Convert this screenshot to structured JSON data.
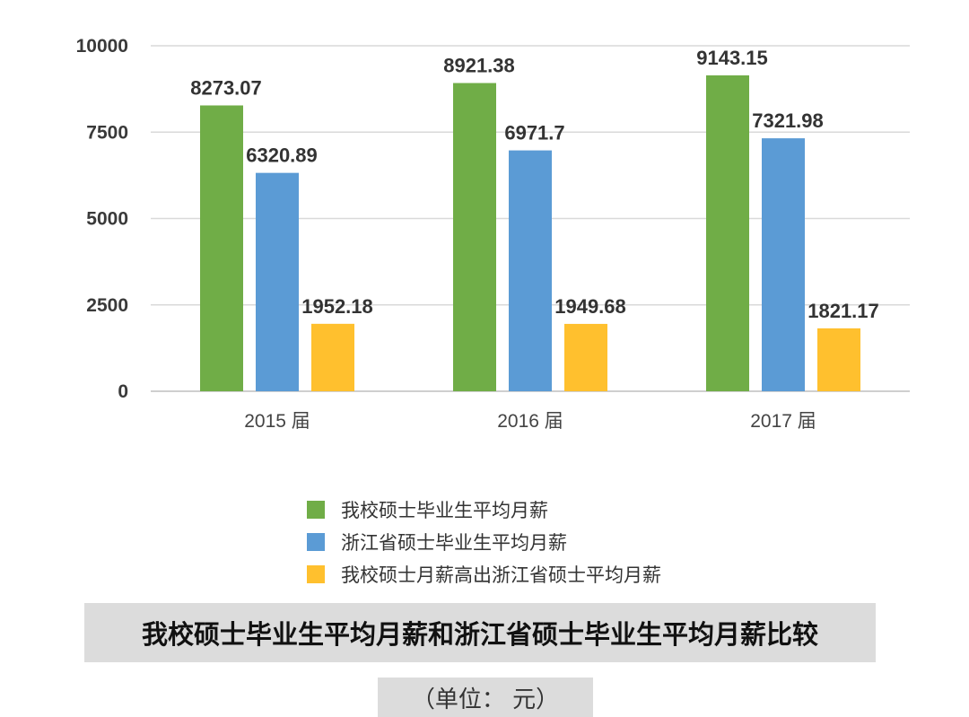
{
  "chart_data": {
    "type": "bar",
    "categories": [
      "2015 届",
      "2016 届",
      "2017 届"
    ],
    "series": [
      {
        "name": "我校硕士毕业生平均月薪",
        "color": "#70ad47",
        "values": [
          8273.07,
          8921.38,
          9143.15
        ]
      },
      {
        "name": "浙江省硕士毕业生平均月薪",
        "color": "#5b9bd5",
        "values": [
          6320.89,
          6971.7,
          7321.98
        ]
      },
      {
        "name": "我校硕士月薪高出浙江省硕士平均月薪",
        "color": "#ffc02e",
        "values": [
          1952.18,
          1949.68,
          1821.17
        ]
      }
    ],
    "y_ticks": [
      "0",
      "2500",
      "5000",
      "7500",
      "10000"
    ],
    "ylim": [
      0,
      10000
    ],
    "grid": true,
    "legend_position": "bottom",
    "title": "我校硕士毕业生平均月薪和浙江省硕士毕业生平均月薪比较",
    "unit_note": "（单位：  元）"
  }
}
